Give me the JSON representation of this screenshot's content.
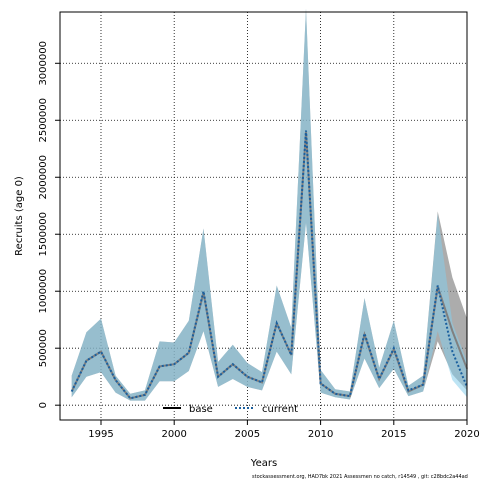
{
  "chart_data": {
    "type": "area",
    "xlabel": "Years",
    "ylabel": "Recruits (age 0)",
    "xlim": [
      1992.2,
      2020.0
    ],
    "ylim": [
      -130000,
      3450000
    ],
    "xticks": [
      1995,
      2000,
      2005,
      2010,
      2015,
      2020
    ],
    "yticks": [
      0,
      500000,
      1000000,
      1500000,
      2000000,
      2500000,
      3000000
    ],
    "grid": true,
    "legend_position": "bottom-center",
    "x": [
      1993,
      1994,
      1995,
      1996,
      1997,
      1998,
      1999,
      2000,
      2001,
      2002,
      2003,
      2004,
      2005,
      2006,
      2007,
      2008,
      2009,
      2010,
      2011,
      2012,
      2013,
      2014,
      2015,
      2016,
      2017,
      2018,
      2019,
      2020
    ],
    "series": [
      {
        "name": "base",
        "color": "#808080",
        "band_color": "#808080",
        "line_style": "solid",
        "values": [
          120000,
          390000,
          470000,
          220000,
          60000,
          90000,
          340000,
          360000,
          460000,
          990000,
          250000,
          360000,
          250000,
          200000,
          720000,
          440000,
          2400000,
          190000,
          100000,
          80000,
          620000,
          230000,
          490000,
          120000,
          180000,
          1040000,
          650000,
          320000
        ],
        "lower": [
          70000,
          250000,
          290000,
          110000,
          40000,
          40000,
          210000,
          210000,
          300000,
          650000,
          160000,
          230000,
          160000,
          130000,
          470000,
          270000,
          1600000,
          110000,
          70000,
          50000,
          410000,
          150000,
          320000,
          80000,
          120000,
          560000,
          270000,
          130000
        ],
        "upper": [
          260000,
          640000,
          760000,
          260000,
          100000,
          130000,
          560000,
          550000,
          740000,
          1550000,
          380000,
          530000,
          370000,
          290000,
          1050000,
          680000,
          3480000,
          310000,
          140000,
          120000,
          940000,
          330000,
          740000,
          170000,
          260000,
          1700000,
          1120000,
          760000
        ]
      },
      {
        "name": "current",
        "color": "#1a5f9e",
        "band_color": "#87ceeb",
        "line_style": "dotted",
        "values": [
          120000,
          390000,
          470000,
          220000,
          60000,
          90000,
          340000,
          360000,
          460000,
          1000000,
          250000,
          360000,
          250000,
          200000,
          720000,
          440000,
          2410000,
          190000,
          100000,
          80000,
          630000,
          230000,
          500000,
          130000,
          180000,
          1050000,
          470000,
          160000
        ],
        "lower": [
          70000,
          250000,
          290000,
          110000,
          40000,
          40000,
          210000,
          210000,
          300000,
          650000,
          160000,
          230000,
          160000,
          130000,
          470000,
          270000,
          1600000,
          110000,
          70000,
          50000,
          410000,
          150000,
          320000,
          80000,
          120000,
          650000,
          220000,
          70000
        ],
        "upper": [
          260000,
          640000,
          760000,
          260000,
          100000,
          130000,
          560000,
          550000,
          740000,
          1550000,
          380000,
          530000,
          370000,
          290000,
          1050000,
          680000,
          3480000,
          310000,
          140000,
          120000,
          940000,
          330000,
          740000,
          170000,
          260000,
          1680000,
          720000,
          380000
        ]
      }
    ]
  },
  "labels": {
    "xlabel": "Years",
    "ylabel": "Recruits (age 0)",
    "legend_base": "base",
    "legend_current": "current",
    "footer": "stockassessment.org, HAD7bk 2021 Assessmen no catch, r14549 , git: c28bdc2a44ad"
  }
}
